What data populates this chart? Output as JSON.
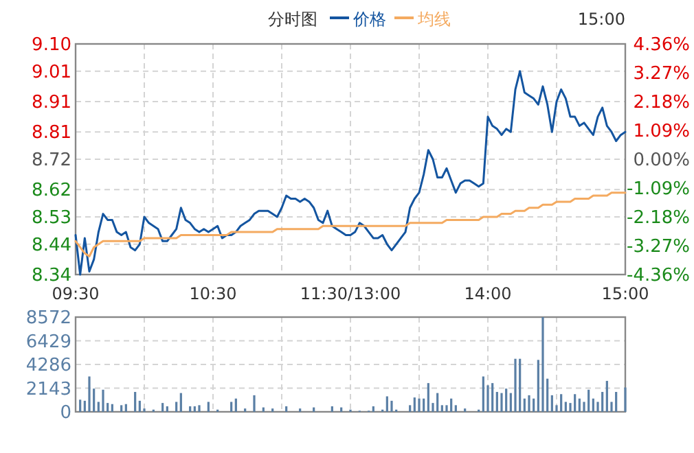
{
  "chart_data": [
    {
      "type": "line",
      "title": "分时图",
      "legend": "top",
      "grid": true,
      "annotations": [
        "15:00"
      ],
      "categories": [
        "09:30",
        null,
        null,
        null,
        null,
        null,
        null,
        null,
        null,
        null,
        null,
        null,
        null,
        null,
        null,
        null,
        null,
        null,
        null,
        null,
        null,
        null,
        null,
        null,
        null,
        null,
        null,
        null,
        null,
        null,
        "10:30",
        null,
        null,
        null,
        null,
        null,
        null,
        null,
        null,
        null,
        null,
        null,
        null,
        null,
        null,
        null,
        null,
        null,
        null,
        null,
        null,
        null,
        null,
        null,
        null,
        null,
        null,
        null,
        null,
        null,
        "11:30/13:00",
        null,
        null,
        null,
        null,
        null,
        null,
        null,
        null,
        null,
        null,
        null,
        null,
        null,
        null,
        null,
        null,
        null,
        null,
        null,
        null,
        null,
        null,
        null,
        null,
        null,
        null,
        null,
        null,
        null,
        "14:00",
        null,
        null,
        null,
        null,
        null,
        null,
        null,
        null,
        null,
        null,
        null,
        null,
        null,
        null,
        null,
        null,
        null,
        null,
        null,
        null,
        null,
        null,
        null,
        null,
        null,
        null,
        null,
        null,
        null,
        "15:00"
      ],
      "ylim": [
        8.34,
        9.1
      ],
      "yticks": [
        8.34,
        8.44,
        8.53,
        8.62,
        8.72,
        8.81,
        8.91,
        9.01,
        {
          "value": 9.1,
          "label": "9.10"
        }
      ],
      "y2lim": [
        -4.36,
        4.36
      ],
      "y2ticks": [
        {
          "value": -4.36,
          "label": "-4.36%"
        },
        {
          "value": -3.27,
          "label": "-3.27%"
        },
        {
          "value": -2.18,
          "label": "-2.18%"
        },
        {
          "value": -1.09,
          "label": "-1.09%"
        },
        {
          "value": 0,
          "label": "0.00%"
        },
        {
          "value": 1.09,
          "label": "1.09%"
        },
        {
          "value": 2.18,
          "label": "2.18%"
        },
        {
          "value": 3.27,
          "label": "3.27%"
        },
        {
          "value": 4.36,
          "label": "4.36%"
        }
      ],
      "series": [
        {
          "name": "价格",
          "color": "#1455a0",
          "values": [
            8.47,
            8.34,
            8.46,
            8.35,
            8.39,
            8.48,
            8.54,
            8.52,
            8.52,
            8.48,
            8.47,
            8.48,
            8.43,
            8.42,
            8.44,
            8.53,
            8.51,
            8.5,
            8.49,
            8.45,
            8.45,
            8.47,
            8.49,
            8.56,
            8.52,
            8.51,
            8.49,
            8.48,
            8.49,
            8.48,
            8.49,
            8.5,
            8.46,
            8.47,
            8.47,
            8.48,
            8.5,
            8.51,
            8.52,
            8.54,
            8.55,
            8.55,
            8.55,
            8.54,
            8.53,
            8.56,
            8.6,
            8.59,
            8.59,
            8.58,
            8.59,
            8.58,
            8.56,
            8.52,
            8.51,
            8.55,
            8.5,
            8.49,
            8.48,
            8.47,
            8.47,
            8.48,
            8.51,
            8.5,
            8.48,
            8.46,
            8.46,
            8.47,
            8.44,
            8.42,
            8.44,
            8.46,
            8.48,
            8.56,
            8.59,
            8.61,
            8.67,
            8.75,
            8.72,
            8.66,
            8.66,
            8.69,
            8.65,
            8.61,
            8.64,
            8.65,
            8.65,
            8.64,
            8.63,
            8.64,
            8.86,
            8.83,
            8.82,
            8.8,
            8.82,
            8.81,
            8.95,
            9.01,
            8.94,
            8.93,
            8.92,
            8.9,
            8.96,
            8.9,
            8.81,
            8.91,
            8.95,
            8.92,
            8.86,
            8.86,
            8.83,
            8.84,
            8.82,
            8.8,
            8.86,
            8.89,
            8.83,
            8.81,
            8.78,
            8.8,
            8.81
          ]
        },
        {
          "name": "均线",
          "color": "#f4aa60",
          "values": [
            8.45,
            8.43,
            8.41,
            8.4,
            8.43,
            8.44,
            8.45,
            8.45,
            8.45,
            8.45,
            8.45,
            8.45,
            8.45,
            8.45,
            8.45,
            8.46,
            8.46,
            8.46,
            8.46,
            8.46,
            8.46,
            8.46,
            8.46,
            8.47,
            8.47,
            8.47,
            8.47,
            8.47,
            8.47,
            8.47,
            8.47,
            8.47,
            8.47,
            8.47,
            8.48,
            8.48,
            8.48,
            8.48,
            8.48,
            8.48,
            8.48,
            8.48,
            8.48,
            8.48,
            8.49,
            8.49,
            8.49,
            8.49,
            8.49,
            8.49,
            8.49,
            8.49,
            8.49,
            8.49,
            8.5,
            8.5,
            8.5,
            8.5,
            8.5,
            8.5,
            8.5,
            8.5,
            8.5,
            8.5,
            8.5,
            8.5,
            8.5,
            8.5,
            8.5,
            8.5,
            8.5,
            8.5,
            8.5,
            8.51,
            8.51,
            8.51,
            8.51,
            8.51,
            8.51,
            8.51,
            8.51,
            8.52,
            8.52,
            8.52,
            8.52,
            8.52,
            8.52,
            8.52,
            8.52,
            8.53,
            8.53,
            8.53,
            8.53,
            8.54,
            8.54,
            8.54,
            8.55,
            8.55,
            8.55,
            8.56,
            8.56,
            8.56,
            8.57,
            8.57,
            8.57,
            8.58,
            8.58,
            8.58,
            8.58,
            8.59,
            8.59,
            8.59,
            8.59,
            8.6,
            8.6,
            8.6,
            8.6,
            8.61,
            8.61,
            8.61,
            8.61
          ]
        }
      ]
    },
    {
      "type": "bar",
      "color": "#5a7fa5",
      "grid": true,
      "tick_labels": "y",
      "categories": [
        null,
        null,
        null,
        null,
        null,
        null,
        null,
        null,
        null,
        null,
        null,
        null,
        null,
        null,
        null,
        null,
        null,
        null,
        null,
        null,
        null,
        null,
        null,
        null,
        null,
        null,
        null,
        null,
        null,
        null,
        null,
        null,
        null,
        null,
        null,
        null,
        null,
        null,
        null,
        null,
        null,
        null,
        null,
        null,
        null,
        null,
        null,
        null,
        null,
        null,
        null,
        null,
        null,
        null,
        null,
        null,
        null,
        null,
        null,
        null,
        null,
        null,
        null,
        null,
        null,
        null,
        null,
        null,
        null,
        null,
        null,
        null,
        null,
        null,
        null,
        null,
        null,
        null,
        null,
        null,
        null,
        null,
        null,
        null,
        null,
        null,
        null,
        null,
        null,
        null,
        null,
        null,
        null,
        null,
        null,
        null,
        null,
        null,
        null,
        null,
        null,
        null,
        null,
        null,
        null,
        null,
        null,
        null,
        null,
        null,
        null,
        null,
        null,
        null,
        null,
        null,
        null,
        null,
        null,
        null,
        null
      ],
      "ylim": [
        0,
        8572
      ],
      "yticks": [
        0,
        2143,
        4286,
        6429,
        8572
      ],
      "values": [
        null,
        1100,
        1000,
        3200,
        2100,
        900,
        2000,
        800,
        700,
        null,
        600,
        700,
        null,
        1800,
        1000,
        300,
        null,
        200,
        null,
        800,
        500,
        null,
        900,
        1700,
        null,
        500,
        500,
        600,
        null,
        900,
        null,
        200,
        null,
        null,
        900,
        1200,
        null,
        300,
        null,
        1500,
        null,
        400,
        null,
        300,
        null,
        null,
        500,
        null,
        null,
        300,
        null,
        null,
        400,
        null,
        null,
        null,
        500,
        null,
        400,
        null,
        200,
        null,
        100,
        null,
        100,
        500,
        null,
        200,
        1400,
        1000,
        200,
        null,
        null,
        600,
        1300,
        1200,
        1200,
        2600,
        800,
        1700,
        600,
        600,
        1200,
        600,
        null,
        300,
        null,
        null,
        200,
        3200,
        2400,
        2600,
        1800,
        1700,
        2100,
        1700,
        4800,
        4800,
        1200,
        1500,
        1200,
        4700,
        8572,
        3000,
        1500,
        600,
        1600,
        900,
        800,
        1600,
        1200,
        900,
        2000,
        1200,
        900,
        1800,
        2800,
        900,
        1800,
        null,
        2200
      ]
    }
  ]
}
